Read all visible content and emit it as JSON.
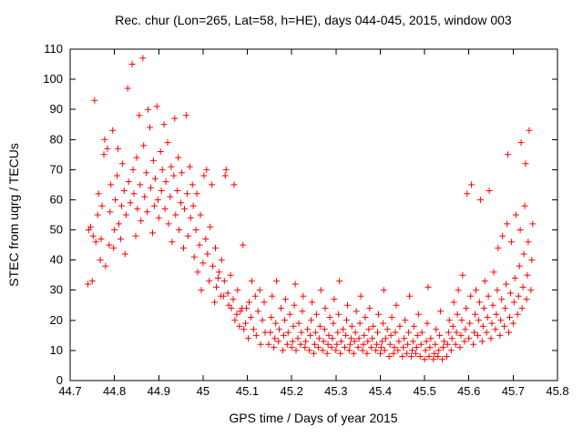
{
  "page": {
    "background": "#ffffff"
  },
  "chart_data": {
    "type": "scatter",
    "title": "Rec. chur (Lon=265, Lat=58, h=HE), days 044-045, 2015, window 003",
    "xlabel": "GPS time / Days of year 2015",
    "ylabel": "STEC from uqrg / TECUs",
    "xlim": [
      44.7,
      45.8
    ],
    "ylim": [
      0,
      110
    ],
    "grid": false,
    "legend": "none",
    "marker": "plus",
    "marker_color": "#ff0000",
    "marker_size": 7,
    "xticks": [
      {
        "value": 44.7,
        "label": "44.7"
      },
      {
        "value": 44.8,
        "label": "44.8"
      },
      {
        "value": 44.9,
        "label": "44.9"
      },
      {
        "value": 45.0,
        "label": "45"
      },
      {
        "value": 45.1,
        "label": "45.1"
      },
      {
        "value": 45.2,
        "label": "45.2"
      },
      {
        "value": 45.3,
        "label": "45.3"
      },
      {
        "value": 45.4,
        "label": "45.4"
      },
      {
        "value": 45.5,
        "label": "45.5"
      },
      {
        "value": 45.6,
        "label": "45.6"
      },
      {
        "value": 45.7,
        "label": "45.7"
      },
      {
        "value": 45.8,
        "label": "45.8"
      }
    ],
    "yticks": [
      {
        "value": 0,
        "label": "0"
      },
      {
        "value": 10,
        "label": "10"
      },
      {
        "value": 20,
        "label": "20"
      },
      {
        "value": 30,
        "label": "30"
      },
      {
        "value": 40,
        "label": "40"
      },
      {
        "value": 50,
        "label": "50"
      },
      {
        "value": 60,
        "label": "60"
      },
      {
        "value": 70,
        "label": "70"
      },
      {
        "value": 80,
        "label": "80"
      },
      {
        "value": 90,
        "label": "90"
      },
      {
        "value": 100,
        "label": "100"
      },
      {
        "value": 110,
        "label": "110"
      }
    ],
    "points": [
      [
        44.74,
        32
      ],
      [
        44.742,
        50
      ],
      [
        44.746,
        51
      ],
      [
        44.75,
        33
      ],
      [
        44.752,
        48
      ],
      [
        44.755,
        93
      ],
      [
        44.758,
        46
      ],
      [
        44.762,
        55
      ],
      [
        44.764,
        62
      ],
      [
        44.768,
        40
      ],
      [
        44.77,
        47
      ],
      [
        44.772,
        58
      ],
      [
        44.776,
        75
      ],
      [
        44.778,
        80
      ],
      [
        44.78,
        38
      ],
      [
        44.784,
        77
      ],
      [
        44.788,
        45
      ],
      [
        44.79,
        56
      ],
      [
        44.792,
        65
      ],
      [
        44.796,
        83
      ],
      [
        44.798,
        44
      ],
      [
        44.8,
        50
      ],
      [
        44.802,
        60
      ],
      [
        44.806,
        68
      ],
      [
        44.808,
        77
      ],
      [
        44.81,
        52
      ],
      [
        44.814,
        47
      ],
      [
        44.816,
        58
      ],
      [
        44.818,
        72
      ],
      [
        44.822,
        63
      ],
      [
        44.824,
        42
      ],
      [
        44.826,
        55
      ],
      [
        44.83,
        97
      ],
      [
        44.832,
        66
      ],
      [
        44.836,
        59
      ],
      [
        44.84,
        105
      ],
      [
        44.842,
        70
      ],
      [
        44.844,
        62
      ],
      [
        44.848,
        48
      ],
      [
        44.85,
        74
      ],
      [
        44.852,
        57
      ],
      [
        44.856,
        88
      ],
      [
        44.858,
        65
      ],
      [
        44.86,
        53
      ],
      [
        44.864,
        107
      ],
      [
        44.866,
        78
      ],
      [
        44.868,
        61
      ],
      [
        44.872,
        69
      ],
      [
        44.874,
        56
      ],
      [
        44.876,
        90
      ],
      [
        44.88,
        84
      ],
      [
        44.882,
        64
      ],
      [
        44.886,
        49
      ],
      [
        44.888,
        73
      ],
      [
        44.89,
        58
      ],
      [
        44.892,
        67
      ],
      [
        44.896,
        91
      ],
      [
        44.898,
        60
      ],
      [
        44.9,
        54
      ],
      [
        44.904,
        76
      ],
      [
        44.906,
        63
      ],
      [
        44.908,
        70
      ],
      [
        44.912,
        85
      ],
      [
        44.914,
        57
      ],
      [
        44.916,
        66
      ],
      [
        44.92,
        79
      ],
      [
        44.922,
        52
      ],
      [
        44.926,
        61
      ],
      [
        44.928,
        71
      ],
      [
        44.93,
        46
      ],
      [
        44.934,
        68
      ],
      [
        44.936,
        87
      ],
      [
        44.938,
        55
      ],
      [
        44.942,
        63
      ],
      [
        44.944,
        74
      ],
      [
        44.946,
        50
      ],
      [
        44.95,
        59
      ],
      [
        44.952,
        69
      ],
      [
        44.956,
        44
      ],
      [
        44.958,
        57
      ],
      [
        44.962,
        88
      ],
      [
        44.964,
        62
      ],
      [
        44.966,
        48
      ],
      [
        44.97,
        71
      ],
      [
        44.972,
        54
      ],
      [
        44.976,
        65
      ],
      [
        44.978,
        58
      ],
      [
        44.98,
        41
      ],
      [
        44.984,
        50
      ],
      [
        44.986,
        62
      ],
      [
        44.988,
        36
      ],
      [
        44.992,
        45
      ],
      [
        44.994,
        55
      ],
      [
        44.996,
        30
      ],
      [
        45.0,
        39
      ],
      [
        45.002,
        68
      ],
      [
        45.006,
        47
      ],
      [
        45.008,
        70
      ],
      [
        45.01,
        42
      ],
      [
        45.014,
        33
      ],
      [
        45.016,
        51
      ],
      [
        45.02,
        65
      ],
      [
        45.022,
        38
      ],
      [
        45.026,
        26
      ],
      [
        45.028,
        44
      ],
      [
        45.03,
        31
      ],
      [
        45.034,
        34
      ],
      [
        45.036,
        36
      ],
      [
        45.04,
        28
      ],
      [
        45.042,
        40
      ],
      [
        45.046,
        28
      ],
      [
        45.048,
        33
      ],
      [
        45.05,
        68
      ],
      [
        45.052,
        70
      ],
      [
        45.056,
        29
      ],
      [
        45.058,
        25
      ],
      [
        45.062,
        35
      ],
      [
        45.064,
        24
      ],
      [
        45.068,
        27
      ],
      [
        45.07,
        65
      ],
      [
        45.072,
        20
      ],
      [
        45.076,
        22
      ],
      [
        45.078,
        30
      ],
      [
        45.082,
        18
      ],
      [
        45.084,
        23
      ],
      [
        45.088,
        24
      ],
      [
        45.09,
        45
      ],
      [
        45.092,
        17
      ],
      [
        45.096,
        19
      ],
      [
        45.098,
        24
      ],
      [
        45.102,
        14
      ],
      [
        45.104,
        26
      ],
      [
        45.108,
        21
      ],
      [
        45.11,
        33
      ],
      [
        45.114,
        17
      ],
      [
        45.118,
        28
      ],
      [
        45.12,
        15
      ],
      [
        45.124,
        23
      ],
      [
        45.128,
        30
      ],
      [
        45.13,
        12
      ],
      [
        45.134,
        20
      ],
      [
        45.138,
        26
      ],
      [
        45.14,
        16
      ],
      [
        45.148,
        12
      ],
      [
        45.152,
        16
      ],
      [
        45.154,
        21
      ],
      [
        45.156,
        28
      ],
      [
        45.16,
        11
      ],
      [
        45.162,
        14
      ],
      [
        45.164,
        19
      ],
      [
        45.166,
        33
      ],
      [
        45.17,
        13
      ],
      [
        45.172,
        17
      ],
      [
        45.176,
        24
      ],
      [
        45.18,
        10
      ],
      [
        45.182,
        15
      ],
      [
        45.184,
        20
      ],
      [
        45.186,
        27
      ],
      [
        45.19,
        12
      ],
      [
        45.192,
        16
      ],
      [
        45.196,
        22
      ],
      [
        45.2,
        11
      ],
      [
        45.202,
        13
      ],
      [
        45.204,
        18
      ],
      [
        45.206,
        25
      ],
      [
        45.208,
        32
      ],
      [
        45.21,
        10
      ],
      [
        45.214,
        14
      ],
      [
        45.216,
        19
      ],
      [
        45.22,
        12
      ],
      [
        45.222,
        16
      ],
      [
        45.224,
        23
      ],
      [
        45.226,
        28
      ],
      [
        45.23,
        11
      ],
      [
        45.232,
        13
      ],
      [
        45.236,
        17
      ],
      [
        45.24,
        10
      ],
      [
        45.242,
        15
      ],
      [
        45.244,
        20
      ],
      [
        45.246,
        26
      ],
      [
        45.25,
        9
      ],
      [
        45.252,
        12
      ],
      [
        45.254,
        16
      ],
      [
        45.256,
        22
      ],
      [
        45.26,
        11
      ],
      [
        45.262,
        14
      ],
      [
        45.264,
        18
      ],
      [
        45.266,
        30
      ],
      [
        45.27,
        10
      ],
      [
        45.272,
        13
      ],
      [
        45.274,
        17
      ],
      [
        45.276,
        24
      ],
      [
        45.28,
        9
      ],
      [
        45.282,
        12
      ],
      [
        45.284,
        15
      ],
      [
        45.286,
        21
      ],
      [
        45.29,
        11
      ],
      [
        45.292,
        14
      ],
      [
        45.294,
        19
      ],
      [
        45.296,
        27
      ],
      [
        45.3,
        10
      ],
      [
        45.302,
        12
      ],
      [
        45.304,
        16
      ],
      [
        45.306,
        22
      ],
      [
        45.308,
        33
      ],
      [
        45.31,
        9
      ],
      [
        45.312,
        13
      ],
      [
        45.316,
        17
      ],
      [
        45.32,
        11
      ],
      [
        45.322,
        15
      ],
      [
        45.324,
        20
      ],
      [
        45.326,
        25
      ],
      [
        45.33,
        10
      ],
      [
        45.332,
        12
      ],
      [
        45.334,
        14
      ],
      [
        45.336,
        18
      ],
      [
        45.34,
        9
      ],
      [
        45.342,
        13
      ],
      [
        45.344,
        16
      ],
      [
        45.346,
        23
      ],
      [
        45.35,
        11
      ],
      [
        45.352,
        14
      ],
      [
        45.354,
        19
      ],
      [
        45.356,
        28
      ],
      [
        45.36,
        10
      ],
      [
        45.362,
        12
      ],
      [
        45.364,
        15
      ],
      [
        45.366,
        21
      ],
      [
        45.37,
        9
      ],
      [
        45.372,
        13
      ],
      [
        45.374,
        17
      ],
      [
        45.376,
        24
      ],
      [
        45.38,
        11
      ],
      [
        45.382,
        14
      ],
      [
        45.384,
        18
      ],
      [
        45.39,
        10
      ],
      [
        45.392,
        12
      ],
      [
        45.394,
        16
      ],
      [
        45.396,
        22
      ],
      [
        45.4,
        9
      ],
      [
        45.402,
        11
      ],
      [
        45.404,
        13
      ],
      [
        45.406,
        19
      ],
      [
        45.408,
        30
      ],
      [
        45.41,
        10
      ],
      [
        45.412,
        14
      ],
      [
        45.416,
        17
      ],
      [
        45.42,
        8
      ],
      [
        45.422,
        12
      ],
      [
        45.424,
        15
      ],
      [
        45.426,
        21
      ],
      [
        45.43,
        9
      ],
      [
        45.432,
        11
      ],
      [
        45.434,
        16
      ],
      [
        45.436,
        25
      ],
      [
        45.44,
        10
      ],
      [
        45.442,
        13
      ],
      [
        45.444,
        18
      ],
      [
        45.45,
        8
      ],
      [
        45.452,
        11
      ],
      [
        45.454,
        14
      ],
      [
        45.456,
        20
      ],
      [
        45.46,
        9
      ],
      [
        45.462,
        12
      ],
      [
        45.464,
        16
      ],
      [
        45.466,
        28
      ],
      [
        45.47,
        8
      ],
      [
        45.472,
        10
      ],
      [
        45.474,
        13
      ],
      [
        45.476,
        18
      ],
      [
        45.48,
        9
      ],
      [
        45.482,
        11
      ],
      [
        45.484,
        15
      ],
      [
        45.486,
        22
      ],
      [
        45.49,
        8
      ],
      [
        45.492,
        12
      ],
      [
        45.494,
        16
      ],
      [
        45.5,
        7
      ],
      [
        45.502,
        10
      ],
      [
        45.504,
        13
      ],
      [
        45.506,
        19
      ],
      [
        45.508,
        31
      ],
      [
        45.51,
        8
      ],
      [
        45.512,
        11
      ],
      [
        45.514,
        14
      ],
      [
        45.52,
        7
      ],
      [
        45.522,
        9
      ],
      [
        45.524,
        12
      ],
      [
        45.526,
        17
      ],
      [
        45.53,
        8
      ],
      [
        45.532,
        10
      ],
      [
        45.534,
        15
      ],
      [
        45.536,
        23
      ],
      [
        45.54,
        7
      ],
      [
        45.542,
        11
      ],
      [
        45.544,
        13
      ],
      [
        45.55,
        8
      ],
      [
        45.552,
        12
      ],
      [
        45.554,
        16
      ],
      [
        45.556,
        20
      ],
      [
        45.56,
        10
      ],
      [
        45.562,
        14
      ],
      [
        45.564,
        18
      ],
      [
        45.566,
        26
      ],
      [
        45.57,
        12
      ],
      [
        45.572,
        16
      ],
      [
        45.574,
        22
      ],
      [
        45.576,
        30
      ],
      [
        45.58,
        11
      ],
      [
        45.582,
        15
      ],
      [
        45.584,
        20
      ],
      [
        45.586,
        35
      ],
      [
        45.59,
        13
      ],
      [
        45.592,
        17
      ],
      [
        45.594,
        24
      ],
      [
        45.596,
        62
      ],
      [
        45.6,
        14
      ],
      [
        45.602,
        19
      ],
      [
        45.604,
        28
      ],
      [
        45.606,
        65
      ],
      [
        45.61,
        12
      ],
      [
        45.612,
        16
      ],
      [
        45.614,
        22
      ],
      [
        45.616,
        30
      ],
      [
        45.62,
        15
      ],
      [
        45.622,
        20
      ],
      [
        45.624,
        26
      ],
      [
        45.626,
        60
      ],
      [
        45.63,
        13
      ],
      [
        45.632,
        18
      ],
      [
        45.634,
        24
      ],
      [
        45.636,
        33
      ],
      [
        45.64,
        16
      ],
      [
        45.642,
        21
      ],
      [
        45.644,
        28
      ],
      [
        45.646,
        63
      ],
      [
        45.65,
        14
      ],
      [
        45.652,
        19
      ],
      [
        45.654,
        25
      ],
      [
        45.656,
        36
      ],
      [
        45.66,
        17
      ],
      [
        45.662,
        22
      ],
      [
        45.664,
        30
      ],
      [
        45.666,
        44
      ],
      [
        45.67,
        15
      ],
      [
        45.672,
        20
      ],
      [
        45.674,
        27
      ],
      [
        45.676,
        48
      ],
      [
        45.68,
        18
      ],
      [
        45.682,
        24
      ],
      [
        45.684,
        32
      ],
      [
        45.686,
        52
      ],
      [
        45.688,
        75
      ],
      [
        45.69,
        16
      ],
      [
        45.692,
        21
      ],
      [
        45.694,
        29
      ],
      [
        45.696,
        46
      ],
      [
        45.7,
        19
      ],
      [
        45.702,
        26
      ],
      [
        45.704,
        34
      ],
      [
        45.706,
        55
      ],
      [
        45.71,
        22
      ],
      [
        45.712,
        28
      ],
      [
        45.714,
        38
      ],
      [
        45.716,
        50
      ],
      [
        45.718,
        79
      ],
      [
        45.72,
        24
      ],
      [
        45.722,
        31
      ],
      [
        45.724,
        42
      ],
      [
        45.726,
        58
      ],
      [
        45.728,
        72
      ],
      [
        45.73,
        27
      ],
      [
        45.732,
        35
      ],
      [
        45.734,
        46
      ],
      [
        45.736,
        83
      ],
      [
        45.74,
        30
      ],
      [
        45.742,
        40
      ],
      [
        45.744,
        52
      ]
    ]
  }
}
